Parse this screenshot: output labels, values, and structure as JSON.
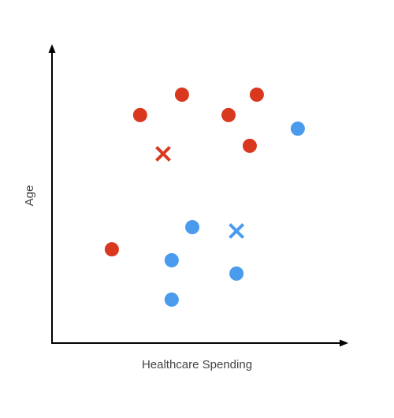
{
  "chart_data": {
    "type": "scatter",
    "x_label": "Healthcare Spending",
    "y_label": "Age",
    "xlim": [
      0,
      100
    ],
    "ylim": [
      0,
      100
    ],
    "series": [
      {
        "color": "#d9381e",
        "marker": "circle",
        "x": [
          44.1,
          69.5,
          29.9,
          59.9,
          67.1,
          20.3
        ],
        "values": [
          84,
          84,
          77.1,
          77.1,
          66.7,
          31.7
        ]
      },
      {
        "color": "#d9381e",
        "marker": "x",
        "x": [
          37.7
        ],
        "values": [
          64
        ]
      },
      {
        "color": "#4a9bee",
        "marker": "circle",
        "x": [
          83.4,
          47.6,
          40.6,
          62.6,
          40.6
        ],
        "values": [
          72.5,
          39.2,
          28,
          23.5,
          14.7
        ]
      },
      {
        "color": "#4a9bee",
        "marker": "x",
        "x": [
          62.6
        ],
        "values": [
          37.9
        ]
      }
    ]
  }
}
